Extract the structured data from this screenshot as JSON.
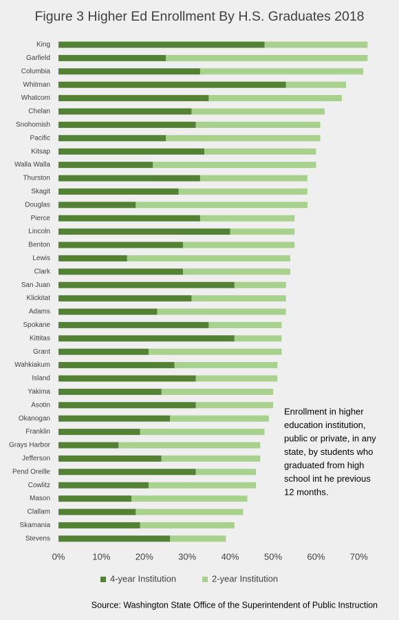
{
  "chart_data": {
    "type": "stacked-bar-horizontal",
    "title": "Figure 3 Higher Ed Enrollment By H.S. Graduates 2018",
    "categories": [
      "King",
      "Garfield",
      "Columbia",
      "Whitman",
      "Whatcom",
      "Chelan",
      "Snohomish",
      "Pacific",
      "Kitsap",
      "Walla Walla",
      "Thurston",
      "Skagit",
      "Douglas",
      "Pierce",
      "Lincoln",
      "Benton",
      "Lewis",
      "Clark",
      "San Juan",
      "Klickitat",
      "Adams",
      "Spokane",
      "Kittitas",
      "Grant",
      "Wahkiakum",
      "Island",
      "Yakima",
      "Asotin",
      "Okanogan",
      "Franklin",
      "Grays Harbor",
      "Jefferson",
      "Pend Oreille",
      "Cowlitz",
      "Mason",
      "Clallam",
      "Skamania",
      "Stevens"
    ],
    "series": [
      {
        "name": "4-year Institution",
        "color": "#548235",
        "values": [
          48,
          25,
          33,
          53,
          35,
          31,
          32,
          25,
          34,
          22,
          33,
          28,
          18,
          33,
          40,
          29,
          16,
          29,
          41,
          31,
          23,
          35,
          41,
          21,
          27,
          32,
          24,
          32,
          26,
          19,
          14,
          24,
          32,
          21,
          17,
          18,
          19,
          26
        ]
      },
      {
        "name": "2-year Institution",
        "color": "#a9d18e",
        "values": [
          24,
          47,
          38,
          14,
          31,
          31,
          29,
          36,
          26,
          38,
          25,
          30,
          40,
          22,
          15,
          26,
          38,
          25,
          12,
          22,
          30,
          17,
          11,
          31,
          24,
          19,
          26,
          18,
          23,
          29,
          33,
          23,
          14,
          25,
          27,
          25,
          22,
          13
        ]
      }
    ],
    "xlim": [
      0,
      75
    ],
    "xticks": [
      {
        "value": 0,
        "label": "0%"
      },
      {
        "value": 10,
        "label": "10%"
      },
      {
        "value": 20,
        "label": "20%"
      },
      {
        "value": 30,
        "label": "30%"
      },
      {
        "value": 40,
        "label": "40%"
      },
      {
        "value": 50,
        "label": "50%"
      },
      {
        "value": 60,
        "label": "60%"
      },
      {
        "value": 70,
        "label": "70%"
      }
    ],
    "grid": false,
    "legend": "bottom",
    "annotation": [
      "Enrollment  in higher",
      "education institution,",
      "public or private, in any",
      "state, by students who",
      "graduated from high",
      "school int he previous",
      "12 months."
    ],
    "source": "Source: Washington State Office of the Superintendent of Public Instruction"
  }
}
